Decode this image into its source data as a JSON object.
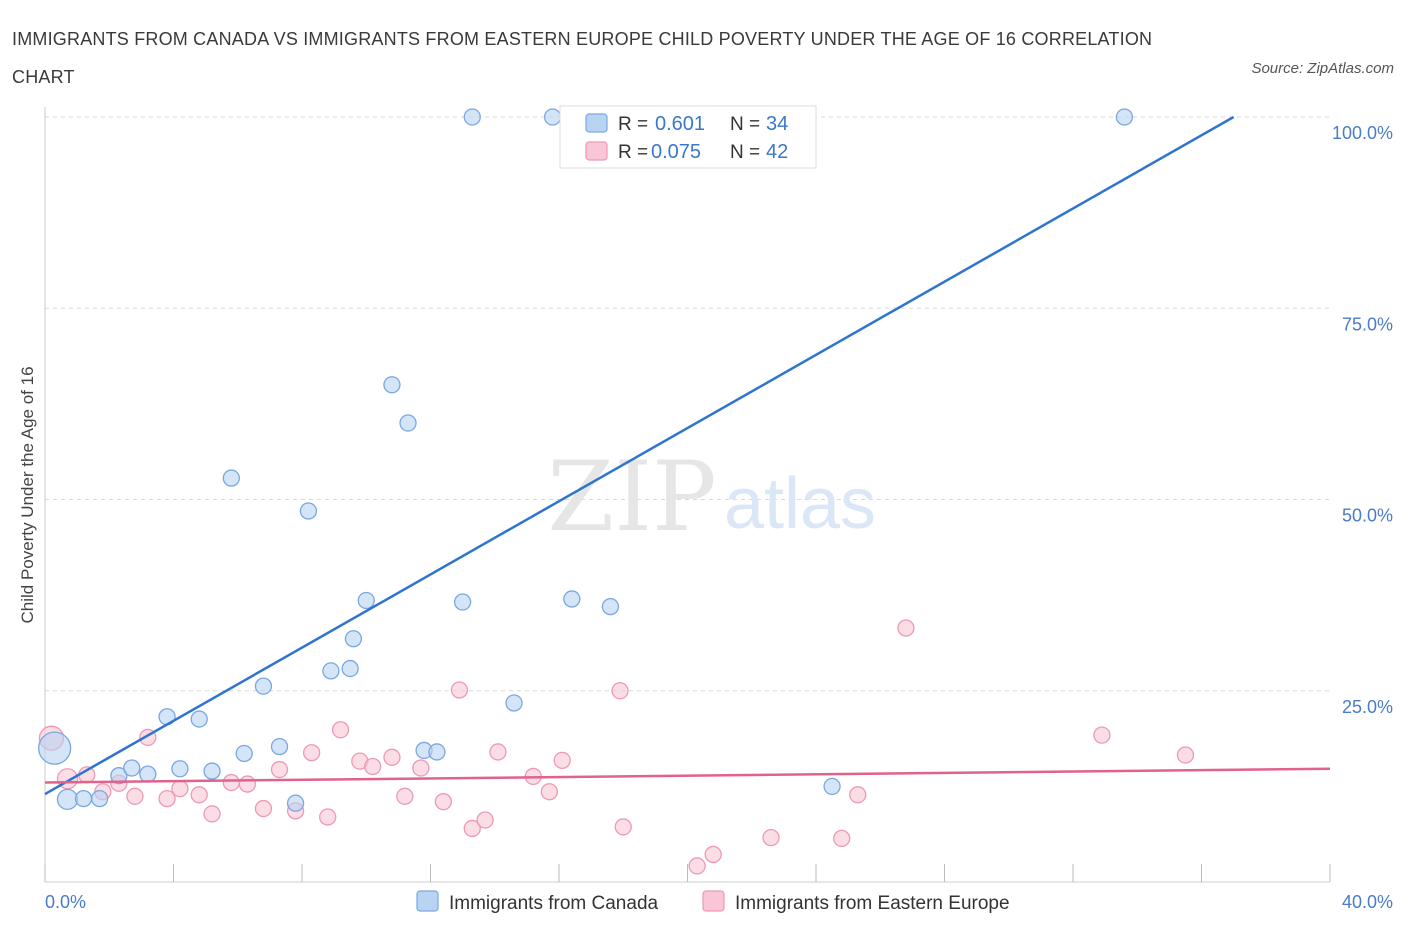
{
  "title": "IMMIGRANTS FROM CANADA VS IMMIGRANTS FROM EASTERN EUROPE CHILD POVERTY UNDER THE AGE OF 16 CORRELATION CHART",
  "source": "Source: ZipAtlas.com",
  "watermark": {
    "zip": "ZIP",
    "atlas": "atlas"
  },
  "colors": {
    "canada_fill": "#b9d3f3",
    "canada_stroke": "#7aa7e0",
    "canada_line": "#2f74cf",
    "europe_fill": "#f8c6d6",
    "europe_stroke": "#ee99b4",
    "europe_line": "#e0628d",
    "grid": "#d8d8d8",
    "axis_text": "#4a7cc7"
  },
  "legend": {
    "r_label": "R =",
    "n_label": "N =",
    "entries": [
      {
        "r": "0.601",
        "n": "34"
      },
      {
        "r": "0.075",
        "n": "42"
      }
    ]
  },
  "chart_data": {
    "type": "scatter",
    "xlabel": "",
    "ylabel": "Child Poverty Under the Age of 16",
    "xlim": [
      0,
      40
    ],
    "ylim": [
      0,
      100
    ],
    "x_tick_labels": [
      {
        "value": 0,
        "label": "0.0%"
      },
      {
        "value": 40,
        "label": "40.0%"
      }
    ],
    "y_tick_labels": [
      {
        "value": 25,
        "label": "25.0%"
      },
      {
        "value": 50,
        "label": "50.0%"
      },
      {
        "value": 75,
        "label": "75.0%"
      },
      {
        "value": 100,
        "label": "100.0%"
      }
    ],
    "grid": true,
    "legend_position": "top-center",
    "series": [
      {
        "name": "Immigrants from Canada",
        "trend": [
          [
            0,
            11.5
          ],
          [
            37,
            100
          ]
        ],
        "points": [
          [
            0.3,
            17.5,
            16
          ],
          [
            0.7,
            10.8,
            10
          ],
          [
            1.2,
            10.9,
            8
          ],
          [
            1.7,
            10.9,
            8
          ],
          [
            2.3,
            13.9,
            8
          ],
          [
            2.7,
            14.9,
            8
          ],
          [
            3.2,
            14.1,
            8
          ],
          [
            3.8,
            21.6,
            8
          ],
          [
            4.2,
            14.8,
            8
          ],
          [
            4.8,
            21.3,
            8
          ],
          [
            5.2,
            14.5,
            8
          ],
          [
            5.8,
            52.8,
            8
          ],
          [
            6.2,
            16.8,
            8
          ],
          [
            6.8,
            25.6,
            8
          ],
          [
            7.3,
            17.7,
            8
          ],
          [
            7.8,
            10.3,
            8
          ],
          [
            8.2,
            48.5,
            8
          ],
          [
            8.9,
            27.6,
            8
          ],
          [
            9.5,
            27.9,
            8
          ],
          [
            9.6,
            31.8,
            8
          ],
          [
            10.0,
            36.8,
            8
          ],
          [
            10.8,
            65.0,
            8
          ],
          [
            11.3,
            60.0,
            8
          ],
          [
            11.8,
            17.2,
            8
          ],
          [
            12.2,
            17.0,
            8
          ],
          [
            13.0,
            36.6,
            8
          ],
          [
            13.3,
            100,
            8
          ],
          [
            14.6,
            23.4,
            8
          ],
          [
            15.8,
            100,
            8
          ],
          [
            16.4,
            37.0,
            8
          ],
          [
            17.4,
            100,
            8
          ],
          [
            17.6,
            36.0,
            8
          ],
          [
            24.5,
            12.5,
            8
          ],
          [
            33.6,
            100,
            8
          ]
        ]
      },
      {
        "name": "Immigrants from Eastern Europe",
        "trend": [
          [
            0,
            13.0
          ],
          [
            40,
            14.8
          ]
        ],
        "points": [
          [
            0.2,
            18.8,
            12
          ],
          [
            0.7,
            13.5,
            10
          ],
          [
            1.3,
            14.0,
            8
          ],
          [
            1.8,
            11.8,
            8
          ],
          [
            2.3,
            12.9,
            8
          ],
          [
            2.8,
            11.2,
            8
          ],
          [
            3.2,
            18.9,
            8
          ],
          [
            3.8,
            10.9,
            8
          ],
          [
            4.2,
            12.2,
            8
          ],
          [
            4.8,
            11.4,
            8
          ],
          [
            5.2,
            8.9,
            8
          ],
          [
            5.8,
            13.0,
            8
          ],
          [
            6.3,
            12.8,
            8
          ],
          [
            6.8,
            9.6,
            8
          ],
          [
            7.3,
            14.7,
            8
          ],
          [
            7.8,
            9.3,
            8
          ],
          [
            8.3,
            16.9,
            8
          ],
          [
            8.8,
            8.5,
            8
          ],
          [
            9.2,
            19.9,
            8
          ],
          [
            9.8,
            15.8,
            8
          ],
          [
            10.2,
            15.1,
            8
          ],
          [
            10.8,
            16.3,
            8
          ],
          [
            11.2,
            11.2,
            8
          ],
          [
            11.7,
            14.9,
            8
          ],
          [
            12.4,
            10.5,
            8
          ],
          [
            12.9,
            25.1,
            8
          ],
          [
            13.3,
            7.0,
            8
          ],
          [
            13.7,
            8.1,
            8
          ],
          [
            14.1,
            17.0,
            8
          ],
          [
            15.2,
            13.8,
            8
          ],
          [
            15.7,
            11.8,
            8
          ],
          [
            16.1,
            15.9,
            8
          ],
          [
            17.9,
            25.0,
            8
          ],
          [
            18.0,
            7.2,
            8
          ],
          [
            20.3,
            2.1,
            8
          ],
          [
            20.8,
            3.6,
            8
          ],
          [
            22.6,
            5.8,
            8
          ],
          [
            24.8,
            5.7,
            8
          ],
          [
            25.3,
            11.4,
            8
          ],
          [
            26.8,
            33.2,
            8
          ],
          [
            32.9,
            19.2,
            8
          ],
          [
            35.5,
            16.6,
            8
          ]
        ]
      }
    ]
  }
}
